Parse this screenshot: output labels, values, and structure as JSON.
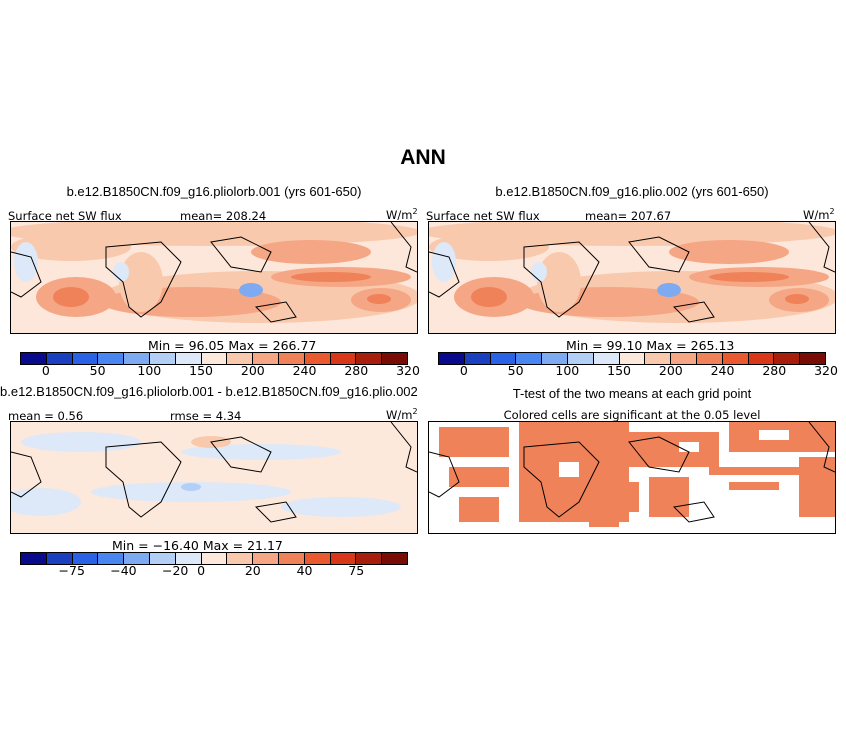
{
  "title": "ANN",
  "panels": {
    "p1": {
      "title": "b.e12.B1850CN.f09_g16.pliolorb.001 (yrs 601-650)",
      "var": "Surface net SW flux",
      "mean": "mean= 208.24",
      "units": "W/m",
      "units_sup": "2",
      "minmax": "Min =  96.05 Max = 266.77"
    },
    "p2": {
      "title": "b.e12.B1850CN.f09_g16.plio.002 (yrs 601-650)",
      "var": "Surface net SW flux",
      "mean": "mean= 207.67",
      "units": "W/m",
      "units_sup": "2",
      "minmax": "Min =  99.10 Max = 265.13"
    },
    "p3": {
      "title": "b.e12.B1850CN.f09_g16.pliolorb.001 - b.e12.B1850CN.f09_g16.plio.002",
      "mean": "mean =  0.56",
      "rmse": "rmse =   4.34",
      "units": "W/m",
      "units_sup": "2",
      "minmax": "Min = −16.40 Max =  21.17"
    },
    "p4": {
      "title": "T-test of the two means at each grid point",
      "subtitle": "Colored cells are significant at the 0.05 level"
    }
  },
  "colorbar_abs": {
    "colors": [
      "#0a0a8c",
      "#1a3fbf",
      "#2a62e6",
      "#4a86f0",
      "#7eaaf2",
      "#b3cff5",
      "#dde9f8",
      "#fde8dc",
      "#f9c9ad",
      "#f5a684",
      "#f08259",
      "#ea5a30",
      "#d9371a",
      "#a81e0d",
      "#7a0c06"
    ],
    "labels": [
      "0",
      "50",
      "100",
      "150",
      "200",
      "240",
      "280",
      "320"
    ]
  },
  "colorbar_diff": {
    "colors": [
      "#0a0a8c",
      "#1a3fbf",
      "#2a62e6",
      "#4a86f0",
      "#7eaaf2",
      "#b3cff5",
      "#dde9f8",
      "#fde8dc",
      "#f9c9ad",
      "#f5a684",
      "#f08259",
      "#ea5a30",
      "#d9371a",
      "#a81e0d",
      "#7a0c06"
    ],
    "labels": [
      "−75",
      "−40",
      "−20",
      "0",
      "20",
      "40",
      "75"
    ]
  }
}
